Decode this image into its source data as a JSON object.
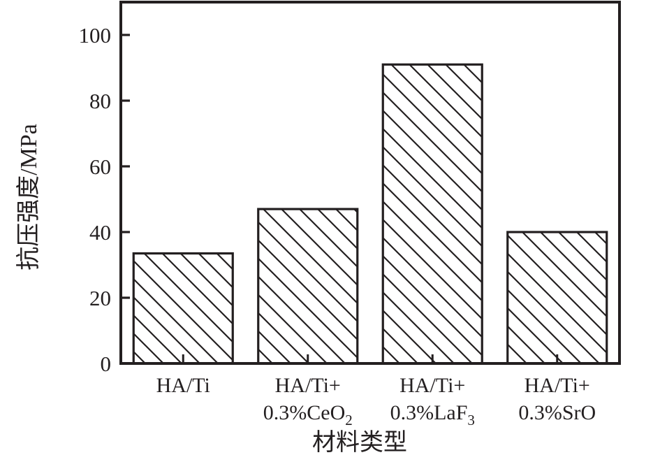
{
  "figure": {
    "background": "#ffffff",
    "ink_color": "#231f20"
  },
  "chart_data": {
    "type": "bar",
    "title": "",
    "xlabel": "材料类型",
    "ylabel": "抗压强度/MPa",
    "categories": [
      {
        "line1": "HA/Ti",
        "line2": "",
        "line2_sub": ""
      },
      {
        "line1": "HA/Ti+",
        "line2": "0.3%CeO",
        "line2_sub": "2"
      },
      {
        "line1": "HA/Ti+",
        "line2": "0.3%LaF",
        "line2_sub": "3"
      },
      {
        "line1": "HA/Ti+",
        "line2": "0.3%SrO",
        "line2_sub": ""
      }
    ],
    "values": [
      33.5,
      47,
      91,
      40
    ],
    "ylim": [
      0,
      110
    ],
    "yticks": [
      0,
      20,
      40,
      60,
      80,
      100
    ],
    "bar_fill": "#ffffff",
    "hatch_style": "backslash-diagonal",
    "grid": false,
    "legend_position": "none"
  }
}
